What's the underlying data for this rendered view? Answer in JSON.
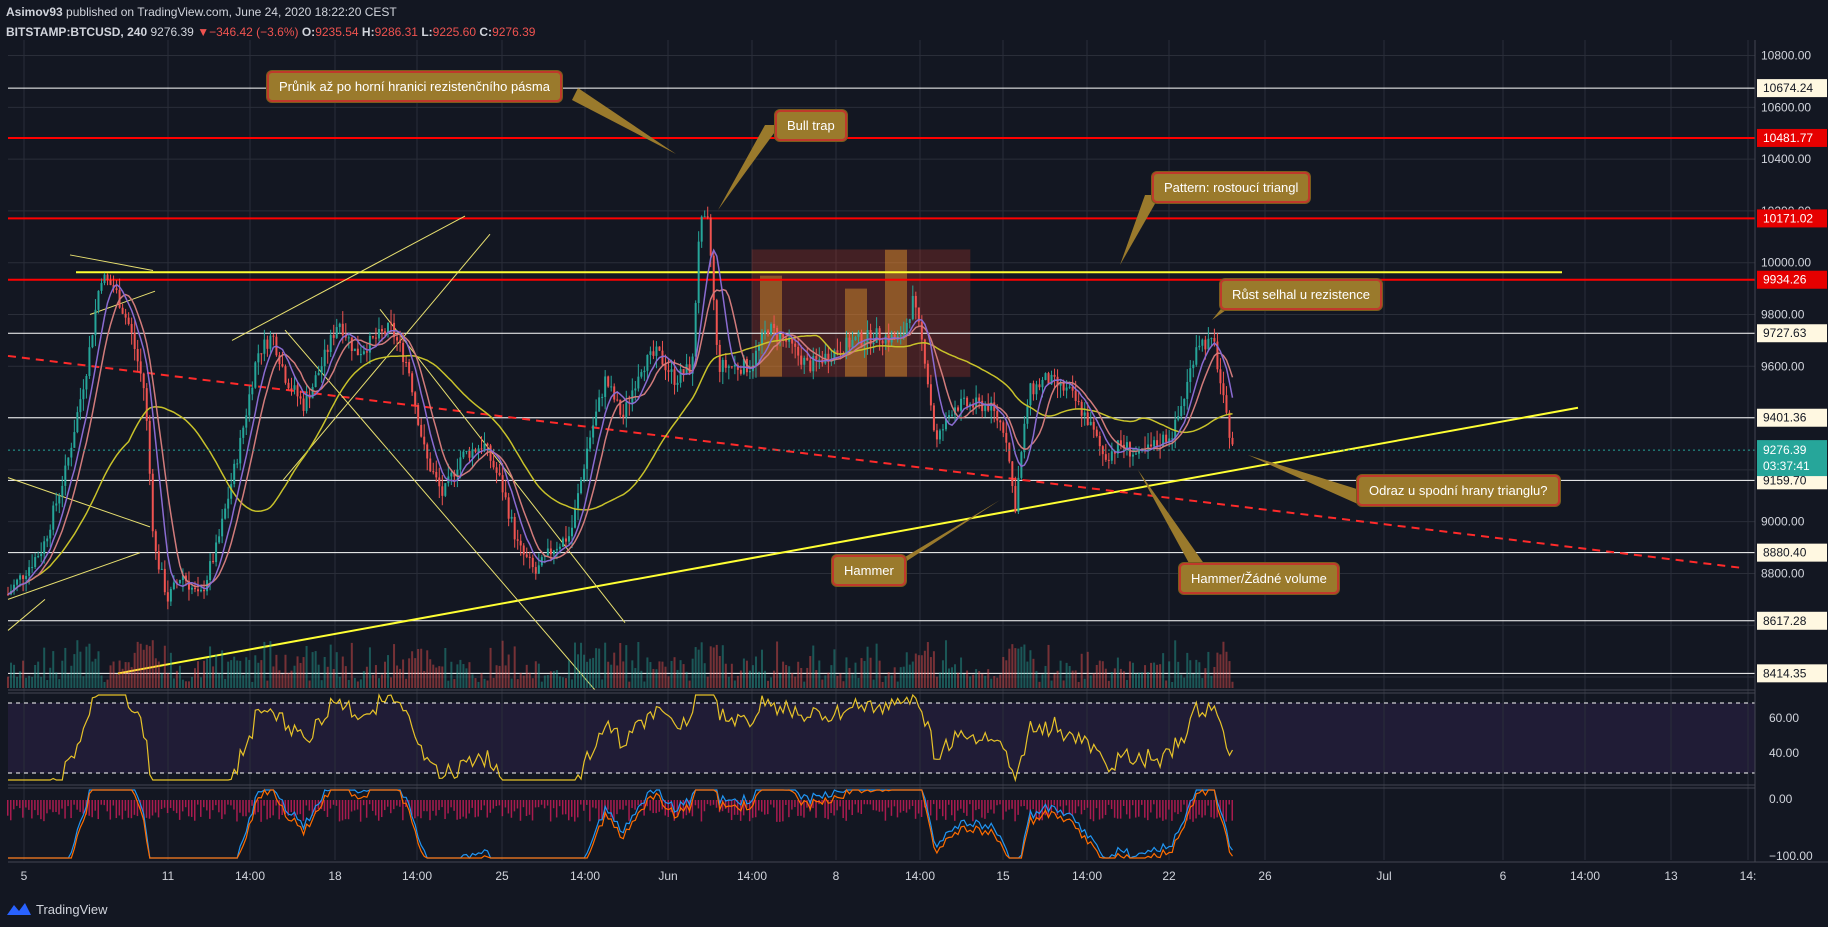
{
  "header": {
    "publisher": "Asimov93",
    "published_text": "published on TradingView.com, June 24, 2020 18:22:20 CEST",
    "symbol": "BITSTAMP:BTCUSD, 240",
    "last": "9276.39",
    "change_arrow": "▼",
    "change": "−346.42 (−3.6%)",
    "o_label": "O:",
    "o_value": "9235.54",
    "h_label": "H:",
    "h_value": "9286.31",
    "l_label": "L:",
    "l_value": "9225.60",
    "c_label": "C:",
    "c_value": "9276.39"
  },
  "footer": {
    "brand": "TradingView",
    "logo_icon": "tradingview-logo-icon"
  },
  "colors": {
    "background": "#131722",
    "grid": "#2a2e39",
    "up": "#26a69a",
    "down": "#ef5350",
    "resistance": "#ff0000",
    "level": "#ffffff",
    "trend": "#ffff33",
    "annotation_bg": "#9a7a2c",
    "annotation_border": "#c0392b"
  },
  "annotations": [
    {
      "text": "Průnik až po horní hranici rezistenčního pásma"
    },
    {
      "text": "Bull trap"
    },
    {
      "text": "Pattern: rostoucí triangl"
    },
    {
      "text": "Růst selhal u rezistence"
    },
    {
      "text": "Odraz u spodní hrany trianglu?"
    },
    {
      "text": "Hammer"
    },
    {
      "text": "Hammer/Žádné volume"
    }
  ],
  "chart_data": {
    "type": "candlestick",
    "title": "BITSTAMP:BTCUSD, 240",
    "y_axis": {
      "ylim": [
        8350,
        10860
      ],
      "ticks": [
        10800,
        10600,
        10400,
        10200,
        10000,
        9800,
        9600,
        9400,
        9200,
        9000,
        8800,
        8600,
        8400
      ],
      "tick_labels": [
        "10800.00",
        "10600.00",
        "10400.00",
        "10200.00",
        "10000.00",
        "9800.00",
        "9600.00",
        "9400.00",
        "9200.00",
        "9000.00",
        "8800.00",
        "8600.00",
        "8400.00"
      ]
    },
    "x_axis": {
      "tick_labels": [
        "5",
        "11",
        "14:00",
        "18",
        "14:00",
        "25",
        "14:00",
        "Jun",
        "14:00",
        "8",
        "14:00",
        "15",
        "14:00",
        "22",
        "26",
        "Jul",
        "6",
        "14:00",
        "13",
        "14:"
      ]
    },
    "horizontal_levels": [
      {
        "value": 10674.24,
        "label": "10674.24",
        "color": "#ffffff"
      },
      {
        "value": 10481.77,
        "label": "10481.77",
        "color": "#ff0000"
      },
      {
        "value": 10171.02,
        "label": "10171.02",
        "color": "#ff0000"
      },
      {
        "value": 9934.26,
        "label": "9934.26",
        "color": "#ff0000"
      },
      {
        "value": 9727.63,
        "label": "9727.63",
        "color": "#ffffff"
      },
      {
        "value": 9401.36,
        "label": "9401.36",
        "color": "#ffffff"
      },
      {
        "value": 9159.7,
        "label": "9159.70",
        "color": "#ffffff"
      },
      {
        "value": 8880.4,
        "label": "8880.40",
        "color": "#ffffff"
      },
      {
        "value": 8617.28,
        "label": "8617.28",
        "color": "#ffffff"
      },
      {
        "value": 8414.35,
        "label": "8414.35",
        "color": "#ffffff"
      }
    ],
    "last_price": {
      "value": 9276.39,
      "label": "9276.39",
      "countdown": "03:37:41"
    },
    "price_path": [
      [
        0,
        8720
      ],
      [
        30,
        8900
      ],
      [
        50,
        9200
      ],
      [
        68,
        9600
      ],
      [
        80,
        9950
      ],
      [
        92,
        9900
      ],
      [
        105,
        9750
      ],
      [
        118,
        9500
      ],
      [
        126,
        8900
      ],
      [
        138,
        8700
      ],
      [
        150,
        8800
      ],
      [
        165,
        8700
      ],
      [
        180,
        8900
      ],
      [
        200,
        9300
      ],
      [
        215,
        9650
      ],
      [
        228,
        9720
      ],
      [
        240,
        9550
      ],
      [
        255,
        9450
      ],
      [
        270,
        9600
      ],
      [
        285,
        9780
      ],
      [
        300,
        9650
      ],
      [
        315,
        9700
      ],
      [
        330,
        9750
      ],
      [
        345,
        9600
      ],
      [
        360,
        9250
      ],
      [
        375,
        9100
      ],
      [
        390,
        9250
      ],
      [
        410,
        9300
      ],
      [
        425,
        9150
      ],
      [
        440,
        8900
      ],
      [
        455,
        8800
      ],
      [
        470,
        8900
      ],
      [
        485,
        8950
      ],
      [
        500,
        9300
      ],
      [
        515,
        9550
      ],
      [
        530,
        9400
      ],
      [
        545,
        9600
      ],
      [
        560,
        9650
      ],
      [
        575,
        9550
      ],
      [
        590,
        9600
      ],
      [
        596,
        10150
      ],
      [
        604,
        10150
      ],
      [
        612,
        9600
      ],
      [
        625,
        9600
      ],
      [
        640,
        9600
      ],
      [
        655,
        9750
      ],
      [
        670,
        9700
      ],
      [
        690,
        9600
      ],
      [
        710,
        9650
      ],
      [
        730,
        9700
      ],
      [
        750,
        9720
      ],
      [
        770,
        9700
      ],
      [
        780,
        9850
      ],
      [
        790,
        9650
      ],
      [
        800,
        9300
      ],
      [
        815,
        9450
      ],
      [
        830,
        9450
      ],
      [
        845,
        9450
      ],
      [
        860,
        9350
      ],
      [
        868,
        9050
      ],
      [
        880,
        9500
      ],
      [
        895,
        9550
      ],
      [
        915,
        9500
      ],
      [
        930,
        9400
      ],
      [
        945,
        9250
      ],
      [
        960,
        9300
      ],
      [
        975,
        9250
      ],
      [
        990,
        9300
      ],
      [
        1005,
        9350
      ],
      [
        1015,
        9500
      ],
      [
        1025,
        9700
      ],
      [
        1040,
        9680
      ],
      [
        1050,
        9400
      ],
      [
        1058,
        9270
      ]
    ],
    "rsi": {
      "ylim": [
        0,
        100
      ],
      "tick_labels": [
        "60.00",
        "40.00"
      ],
      "overbought": 70,
      "oversold": 30
    },
    "macd": {
      "tick_labels": [
        "0.00",
        "−100.00"
      ]
    }
  }
}
